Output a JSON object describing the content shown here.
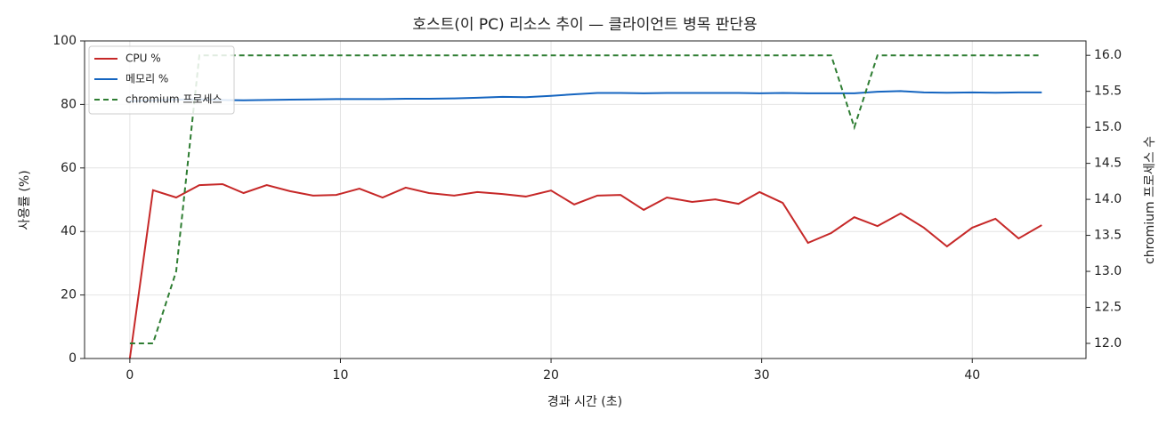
{
  "chart_data": {
    "type": "line",
    "title": "호스트(이 PC) 리소스 추이 — 클라이언트 병목 판단용",
    "x_label": "경과 시간 (초)",
    "y_label": "사용률 (%)",
    "y2_label": "chromium 프로세스 수",
    "x": [
      0,
      1.1,
      2.2,
      3.3,
      4.4,
      5.4,
      6.5,
      7.6,
      8.7,
      9.8,
      10.9,
      12.0,
      13.1,
      14.2,
      15.4,
      16.5,
      17.7,
      18.8,
      20.0,
      21.1,
      22.2,
      23.3,
      24.4,
      25.5,
      26.7,
      27.8,
      28.9,
      29.9,
      31.0,
      32.2,
      33.3,
      34.4,
      35.5,
      36.6,
      37.7,
      38.8,
      40.0,
      41.1,
      42.2,
      43.3
    ],
    "xlim": [
      -2.15,
      45.4
    ],
    "xticks": [
      0,
      10,
      20,
      30,
      40
    ],
    "ylim": [
      0,
      100
    ],
    "yticks": [
      0,
      20,
      40,
      60,
      80,
      100
    ],
    "y2lim": [
      11.79,
      16.2
    ],
    "y2ticks": [
      {
        "value": 12,
        "label": "12.0"
      },
      {
        "value": 12.5,
        "label": "12.5"
      },
      {
        "value": 13,
        "label": "13.0"
      },
      {
        "value": 13.5,
        "label": "13.5"
      },
      {
        "value": 14,
        "label": "14.0"
      },
      {
        "value": 14.5,
        "label": "14.5"
      },
      {
        "value": 15,
        "label": "15.0"
      },
      {
        "value": 15.5,
        "label": "15.5"
      },
      {
        "value": 16,
        "label": "16.0"
      }
    ],
    "grid": true,
    "legend": "upper left",
    "series": [
      {
        "name": "CPU %",
        "color": "#c62828",
        "values": [
          0,
          53,
          50.7,
          54.6,
          54.9,
          52.1,
          54.6,
          52.7,
          51.3,
          51.5,
          53.5,
          50.7,
          53.8,
          52.1,
          51.3,
          52.4,
          51.8,
          51.0,
          52.9,
          48.5,
          51.3,
          51.5,
          46.8,
          50.7,
          49.3,
          50.1,
          48.7,
          52.4,
          49.0,
          36.4,
          39.5,
          44.5,
          41.7,
          45.7,
          41.2,
          35.3,
          41.2,
          44.0,
          37.8,
          42.0
        ]
      },
      {
        "name": "메모리 %",
        "color": "#1565c0",
        "values": [
          81.0,
          81.3,
          81.5,
          81.6,
          81.4,
          81.3,
          81.4,
          81.5,
          81.6,
          81.7,
          81.7,
          81.7,
          81.8,
          81.8,
          81.9,
          82.1,
          82.4,
          82.3,
          82.7,
          83.2,
          83.6,
          83.6,
          83.5,
          83.6,
          83.6,
          83.6,
          83.6,
          83.5,
          83.6,
          83.5,
          83.5,
          83.5,
          84.0,
          84.2,
          83.8,
          83.7,
          83.8,
          83.7,
          83.8,
          83.8
        ]
      },
      {
        "name": "chromium 프로세스",
        "color": "#2e7d32",
        "dashed": true,
        "axis": "y2",
        "values": [
          12,
          12,
          13,
          16,
          16,
          16,
          16,
          16,
          16,
          16,
          16,
          16,
          16,
          16,
          16,
          16,
          16,
          16,
          16,
          16,
          16,
          16,
          16,
          16,
          16,
          16,
          16,
          16,
          16,
          16,
          16,
          15,
          16,
          16,
          16,
          16,
          16,
          16,
          16,
          16
        ]
      }
    ]
  }
}
